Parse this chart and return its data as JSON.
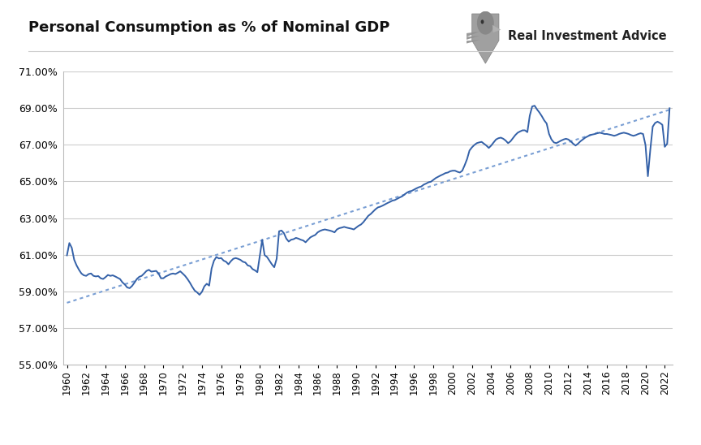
{
  "title": "Personal Consumption as % of Nominal GDP",
  "watermark": "Real Investment Advice",
  "line_color": "#3461A8",
  "trendline_color": "#7A9FD4",
  "background_color": "#FFFFFF",
  "grid_color": "#CCCCCC",
  "ylim": [
    0.55,
    0.71
  ],
  "yticks": [
    0.55,
    0.57,
    0.59,
    0.61,
    0.63,
    0.65,
    0.67,
    0.69,
    0.71
  ],
  "xtick_years": [
    1960,
    1962,
    1964,
    1966,
    1968,
    1970,
    1972,
    1974,
    1976,
    1978,
    1980,
    1982,
    1984,
    1986,
    1988,
    1990,
    1992,
    1994,
    1996,
    1998,
    2000,
    2002,
    2004,
    2006,
    2008,
    2010,
    2012,
    2014,
    2016,
    2018,
    2020,
    2022
  ],
  "years": [
    1960.0,
    1960.25,
    1960.5,
    1960.75,
    1961.0,
    1961.25,
    1961.5,
    1961.75,
    1962.0,
    1962.25,
    1962.5,
    1962.75,
    1963.0,
    1963.25,
    1963.5,
    1963.75,
    1964.0,
    1964.25,
    1964.5,
    1964.75,
    1965.0,
    1965.25,
    1965.5,
    1965.75,
    1966.0,
    1966.25,
    1966.5,
    1966.75,
    1967.0,
    1967.25,
    1967.5,
    1967.75,
    1968.0,
    1968.25,
    1968.5,
    1968.75,
    1969.0,
    1969.25,
    1969.5,
    1969.75,
    1970.0,
    1970.25,
    1970.5,
    1970.75,
    1971.0,
    1971.25,
    1971.5,
    1971.75,
    1972.0,
    1972.25,
    1972.5,
    1972.75,
    1973.0,
    1973.25,
    1973.5,
    1973.75,
    1974.0,
    1974.25,
    1974.5,
    1974.75,
    1975.0,
    1975.25,
    1975.5,
    1975.75,
    1976.0,
    1976.25,
    1976.5,
    1976.75,
    1977.0,
    1977.25,
    1977.5,
    1977.75,
    1978.0,
    1978.25,
    1978.5,
    1978.75,
    1979.0,
    1979.25,
    1979.5,
    1979.75,
    1980.0,
    1980.25,
    1980.5,
    1980.75,
    1981.0,
    1981.25,
    1981.5,
    1981.75,
    1982.0,
    1982.25,
    1982.5,
    1982.75,
    1983.0,
    1983.25,
    1983.5,
    1983.75,
    1984.0,
    1984.25,
    1984.5,
    1984.75,
    1985.0,
    1985.25,
    1985.5,
    1985.75,
    1986.0,
    1986.25,
    1986.5,
    1986.75,
    1987.0,
    1987.25,
    1987.5,
    1987.75,
    1988.0,
    1988.25,
    1988.5,
    1988.75,
    1989.0,
    1989.25,
    1989.5,
    1989.75,
    1990.0,
    1990.25,
    1990.5,
    1990.75,
    1991.0,
    1991.25,
    1991.5,
    1991.75,
    1992.0,
    1992.25,
    1992.5,
    1992.75,
    1993.0,
    1993.25,
    1993.5,
    1993.75,
    1994.0,
    1994.25,
    1994.5,
    1994.75,
    1995.0,
    1995.25,
    1995.5,
    1995.75,
    1996.0,
    1996.25,
    1996.5,
    1996.75,
    1997.0,
    1997.25,
    1997.5,
    1997.75,
    1998.0,
    1998.25,
    1998.5,
    1998.75,
    1999.0,
    1999.25,
    1999.5,
    1999.75,
    2000.0,
    2000.25,
    2000.5,
    2000.75,
    2001.0,
    2001.25,
    2001.5,
    2001.75,
    2002.0,
    2002.25,
    2002.5,
    2002.75,
    2003.0,
    2003.25,
    2003.5,
    2003.75,
    2004.0,
    2004.25,
    2004.5,
    2004.75,
    2005.0,
    2005.25,
    2005.5,
    2005.75,
    2006.0,
    2006.25,
    2006.5,
    2006.75,
    2007.0,
    2007.25,
    2007.5,
    2007.75,
    2008.0,
    2008.25,
    2008.5,
    2008.75,
    2009.0,
    2009.25,
    2009.5,
    2009.75,
    2010.0,
    2010.25,
    2010.5,
    2010.75,
    2011.0,
    2011.25,
    2011.5,
    2011.75,
    2012.0,
    2012.25,
    2012.5,
    2012.75,
    2013.0,
    2013.25,
    2013.5,
    2013.75,
    2014.0,
    2014.25,
    2014.5,
    2014.75,
    2015.0,
    2015.25,
    2015.5,
    2015.75,
    2016.0,
    2016.25,
    2016.5,
    2016.75,
    2017.0,
    2017.25,
    2017.5,
    2017.75,
    2018.0,
    2018.25,
    2018.5,
    2018.75,
    2019.0,
    2019.25,
    2019.5,
    2019.75,
    2020.0,
    2020.25,
    2020.5,
    2020.75,
    2021.0,
    2021.25,
    2021.5,
    2021.75,
    2022.0,
    2022.25,
    2022.5
  ],
  "values": [
    0.6097,
    0.6164,
    0.6138,
    0.6073,
    0.6042,
    0.6018,
    0.5998,
    0.5988,
    0.5985,
    0.5995,
    0.5998,
    0.5985,
    0.5982,
    0.5984,
    0.5972,
    0.5968,
    0.5978,
    0.599,
    0.5985,
    0.5988,
    0.5982,
    0.5975,
    0.5968,
    0.595,
    0.5938,
    0.5922,
    0.5918,
    0.593,
    0.5948,
    0.5968,
    0.598,
    0.5985,
    0.5998,
    0.6012,
    0.6018,
    0.6008,
    0.601,
    0.6012,
    0.5998,
    0.5972,
    0.5972,
    0.5982,
    0.5988,
    0.5995,
    0.5998,
    0.5995,
    0.6002,
    0.601,
    0.5998,
    0.5985,
    0.5968,
    0.5948,
    0.5925,
    0.5905,
    0.5895,
    0.5882,
    0.5898,
    0.5928,
    0.5942,
    0.5932,
    0.6025,
    0.6068,
    0.6088,
    0.608,
    0.6082,
    0.6068,
    0.6062,
    0.6048,
    0.6065,
    0.6078,
    0.6082,
    0.6078,
    0.6072,
    0.6062,
    0.6058,
    0.6042,
    0.6038,
    0.6022,
    0.6015,
    0.6005,
    0.6095,
    0.6182,
    0.6098,
    0.6088,
    0.6068,
    0.6048,
    0.6032,
    0.6078,
    0.6228,
    0.6232,
    0.6218,
    0.6188,
    0.6172,
    0.6182,
    0.6185,
    0.6192,
    0.6188,
    0.6182,
    0.6178,
    0.6168,
    0.6182,
    0.6195,
    0.6202,
    0.6208,
    0.6222,
    0.623,
    0.6235,
    0.6238,
    0.6235,
    0.6232,
    0.6228,
    0.6222,
    0.6238,
    0.6245,
    0.6248,
    0.6252,
    0.6248,
    0.6245,
    0.6242,
    0.6238,
    0.6248,
    0.6258,
    0.6265,
    0.6278,
    0.6295,
    0.6312,
    0.6322,
    0.6335,
    0.6348,
    0.6358,
    0.6362,
    0.6368,
    0.6375,
    0.6382,
    0.6388,
    0.6395,
    0.6398,
    0.6405,
    0.6412,
    0.6418,
    0.6428,
    0.6438,
    0.6445,
    0.6448,
    0.6455,
    0.6462,
    0.6468,
    0.6472,
    0.6482,
    0.6488,
    0.6495,
    0.6498,
    0.6508,
    0.6518,
    0.6525,
    0.6532,
    0.6538,
    0.6545,
    0.6548,
    0.6555,
    0.6558,
    0.6558,
    0.6552,
    0.6548,
    0.6558,
    0.6588,
    0.6622,
    0.6668,
    0.6685,
    0.6698,
    0.6708,
    0.6712,
    0.6715,
    0.6705,
    0.6695,
    0.6682,
    0.6695,
    0.6712,
    0.6728,
    0.6735,
    0.6738,
    0.6732,
    0.6722,
    0.6708,
    0.6718,
    0.6735,
    0.6752,
    0.6765,
    0.6772,
    0.6778,
    0.6778,
    0.6768,
    0.6858,
    0.6908,
    0.6912,
    0.6892,
    0.6875,
    0.6855,
    0.6832,
    0.6815,
    0.6758,
    0.6728,
    0.6712,
    0.6708,
    0.6715,
    0.6722,
    0.6728,
    0.6732,
    0.6728,
    0.6718,
    0.6705,
    0.6695,
    0.6705,
    0.6718,
    0.6728,
    0.6738,
    0.6745,
    0.6752,
    0.6755,
    0.6758,
    0.6762,
    0.6765,
    0.6762,
    0.6758,
    0.6758,
    0.6755,
    0.6752,
    0.6748,
    0.6752,
    0.6758,
    0.6762,
    0.6765,
    0.6762,
    0.6758,
    0.6752,
    0.6748,
    0.6752,
    0.6758,
    0.6762,
    0.6758,
    0.6698,
    0.6528,
    0.6672,
    0.6798,
    0.6818,
    0.6825,
    0.6818,
    0.6808,
    0.6688,
    0.6705,
    0.6898
  ]
}
